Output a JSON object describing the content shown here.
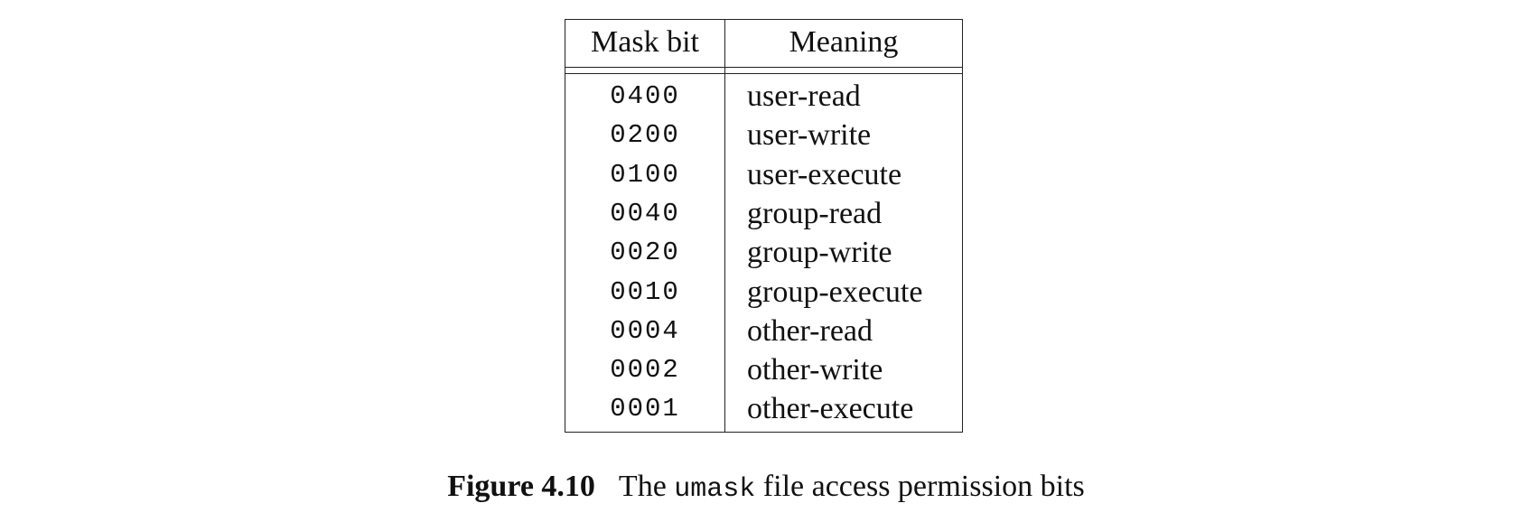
{
  "table": {
    "headers": {
      "mask_bit": "Mask bit",
      "meaning": "Meaning"
    },
    "rows": [
      {
        "bit": "0400",
        "meaning": "user-read"
      },
      {
        "bit": "0200",
        "meaning": "user-write"
      },
      {
        "bit": "0100",
        "meaning": "user-execute"
      },
      {
        "bit": "0040",
        "meaning": "group-read"
      },
      {
        "bit": "0020",
        "meaning": "group-write"
      },
      {
        "bit": "0010",
        "meaning": "group-execute"
      },
      {
        "bit": "0004",
        "meaning": "other-read"
      },
      {
        "bit": "0002",
        "meaning": "other-write"
      },
      {
        "bit": "0001",
        "meaning": "other-execute"
      }
    ]
  },
  "caption": {
    "label": "Figure 4.10",
    "text_before": "The ",
    "code": "umask",
    "text_after": " file access permission bits"
  }
}
